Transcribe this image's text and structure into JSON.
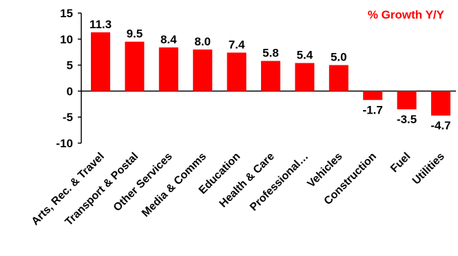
{
  "chart_data": {
    "type": "bar",
    "title": "% Growth Y/Y",
    "xlabel": "",
    "ylabel": "",
    "categories": [
      "Arts, Rec. & Travel",
      "Transport & Postal",
      "Other Services",
      "Media & Comms",
      "Education",
      "Health & Care",
      "Professional…",
      "Vehicles",
      "Construction",
      "Fuel",
      "Utilities"
    ],
    "values": [
      11.3,
      9.5,
      8.4,
      8.0,
      7.4,
      5.8,
      5.4,
      5.0,
      -1.7,
      -3.5,
      -4.7
    ],
    "value_labels": [
      "11.3",
      "9.5",
      "8.4",
      "8.0",
      "7.4",
      "5.8",
      "5.4",
      "5.0",
      "-1.7",
      "-3.5",
      "-4.7"
    ],
    "ylim": [
      -10,
      15
    ],
    "yticks": [
      15,
      10,
      5,
      0,
      -5,
      -10
    ],
    "grid": false,
    "legend": "none",
    "bar_color": "#ff0000",
    "title_color": "#ff0000"
  }
}
